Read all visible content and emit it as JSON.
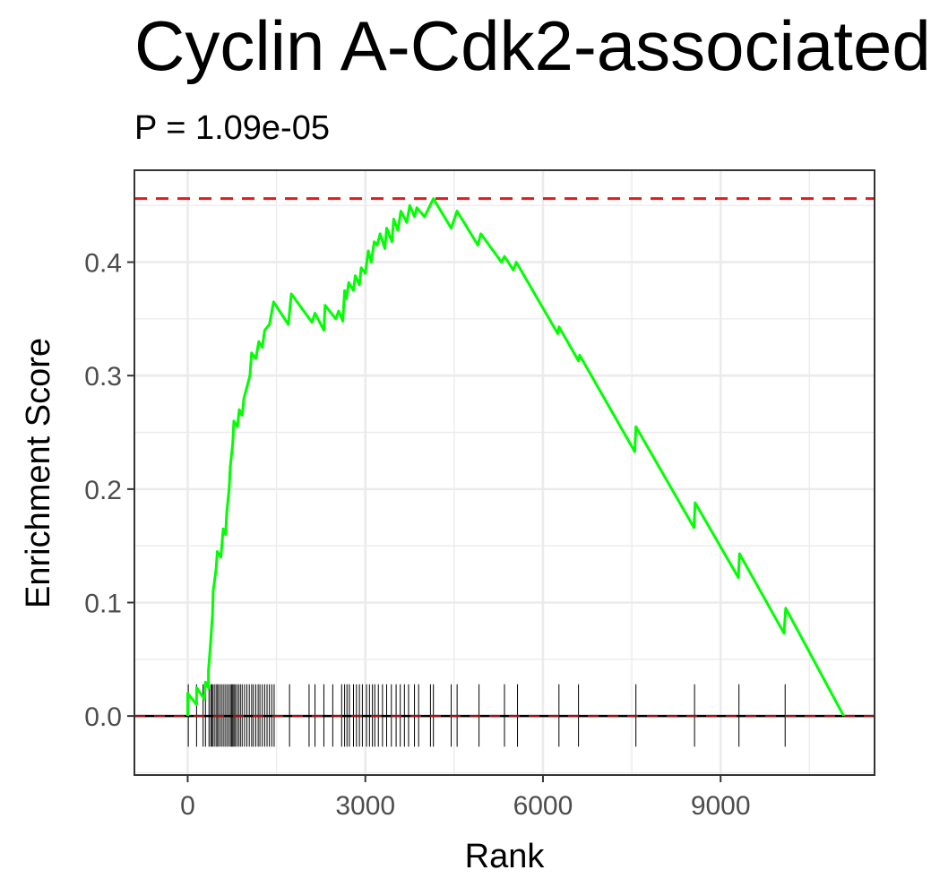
{
  "chart_data": {
    "type": "line",
    "title": "Cyclin A-Cdk2-associated",
    "subtitle": "P = 1.09e-05",
    "xlabel": "Rank",
    "ylabel": "Enrichment Score",
    "xlim": [
      -900,
      11600
    ],
    "ylim": [
      -0.052,
      0.481
    ],
    "x_ticks": [
      0,
      3000,
      6000,
      9000
    ],
    "y_ticks": [
      0.0,
      0.1,
      0.2,
      0.3,
      0.4
    ],
    "grid": true,
    "max_es": 0.456,
    "colors": {
      "curve": "#00ff00",
      "max_line": "#e31a1c",
      "zero_line": "#000000",
      "hits": "#000000",
      "grid": "#ebebeb",
      "panel_border": "#333333"
    },
    "series": [
      {
        "values": [
          [
            0,
            0.0
          ],
          [
            0,
            0.02
          ],
          [
            150,
            0.01
          ],
          [
            150,
            0.025
          ],
          [
            280,
            0.015
          ],
          [
            300,
            0.03
          ],
          [
            350,
            0.025
          ],
          [
            350,
            0.04
          ],
          [
            380,
            0.06
          ],
          [
            420,
            0.09
          ],
          [
            430,
            0.11
          ],
          [
            480,
            0.13
          ],
          [
            500,
            0.145
          ],
          [
            560,
            0.14
          ],
          [
            600,
            0.165
          ],
          [
            640,
            0.16
          ],
          [
            660,
            0.18
          ],
          [
            700,
            0.2
          ],
          [
            720,
            0.22
          ],
          [
            760,
            0.24
          ],
          [
            780,
            0.26
          ],
          [
            840,
            0.255
          ],
          [
            870,
            0.27
          ],
          [
            920,
            0.265
          ],
          [
            950,
            0.28
          ],
          [
            1000,
            0.29
          ],
          [
            1050,
            0.3
          ],
          [
            1080,
            0.32
          ],
          [
            1150,
            0.315
          ],
          [
            1200,
            0.33
          ],
          [
            1260,
            0.325
          ],
          [
            1300,
            0.34
          ],
          [
            1380,
            0.345
          ],
          [
            1450,
            0.365
          ],
          [
            1700,
            0.345
          ],
          [
            1750,
            0.372
          ],
          [
            2100,
            0.347
          ],
          [
            2150,
            0.355
          ],
          [
            2300,
            0.34
          ],
          [
            2320,
            0.362
          ],
          [
            2500,
            0.35
          ],
          [
            2550,
            0.357
          ],
          [
            2620,
            0.348
          ],
          [
            2650,
            0.375
          ],
          [
            2680,
            0.368
          ],
          [
            2720,
            0.382
          ],
          [
            2800,
            0.375
          ],
          [
            2830,
            0.388
          ],
          [
            2900,
            0.38
          ],
          [
            2930,
            0.395
          ],
          [
            3000,
            0.39
          ],
          [
            3050,
            0.41
          ],
          [
            3100,
            0.4
          ],
          [
            3150,
            0.418
          ],
          [
            3200,
            0.415
          ],
          [
            3250,
            0.425
          ],
          [
            3330,
            0.412
          ],
          [
            3360,
            0.43
          ],
          [
            3450,
            0.418
          ],
          [
            3480,
            0.438
          ],
          [
            3550,
            0.428
          ],
          [
            3600,
            0.445
          ],
          [
            3700,
            0.435
          ],
          [
            3750,
            0.45
          ],
          [
            3830,
            0.44
          ],
          [
            3870,
            0.448
          ],
          [
            4000,
            0.44
          ],
          [
            4150,
            0.456
          ],
          [
            4450,
            0.43
          ],
          [
            4550,
            0.445
          ],
          [
            4900,
            0.415
          ],
          [
            4950,
            0.425
          ],
          [
            5300,
            0.4
          ],
          [
            5350,
            0.405
          ],
          [
            5500,
            0.393
          ],
          [
            5550,
            0.4
          ],
          [
            6250,
            0.337
          ],
          [
            6270,
            0.343
          ],
          [
            6600,
            0.313
          ],
          [
            6620,
            0.318
          ],
          [
            7550,
            0.233
          ],
          [
            7570,
            0.255
          ],
          [
            8550,
            0.166
          ],
          [
            8570,
            0.188
          ],
          [
            9300,
            0.122
          ],
          [
            9320,
            0.143
          ],
          [
            10070,
            0.073
          ],
          [
            10100,
            0.095
          ],
          [
            11080,
            0.0
          ]
        ]
      }
    ],
    "hit_ranks": [
      10,
      150,
      260,
      300,
      360,
      390,
      410,
      430,
      460,
      490,
      510,
      540,
      570,
      600,
      630,
      660,
      690,
      720,
      740,
      760,
      780,
      800,
      830,
      860,
      890,
      920,
      960,
      1000,
      1040,
      1080,
      1110,
      1150,
      1190,
      1220,
      1260,
      1300,
      1340,
      1380,
      1420,
      1460,
      1720,
      2050,
      2150,
      2300,
      2450,
      2600,
      2650,
      2690,
      2730,
      2800,
      2850,
      2900,
      2950,
      3020,
      3070,
      3120,
      3160,
      3220,
      3290,
      3360,
      3440,
      3520,
      3590,
      3660,
      3730,
      3830,
      3900,
      4100,
      4150,
      4450,
      4550,
      4920,
      5350,
      5570,
      6270,
      6600,
      7570,
      8560,
      9310,
      10090
    ]
  }
}
